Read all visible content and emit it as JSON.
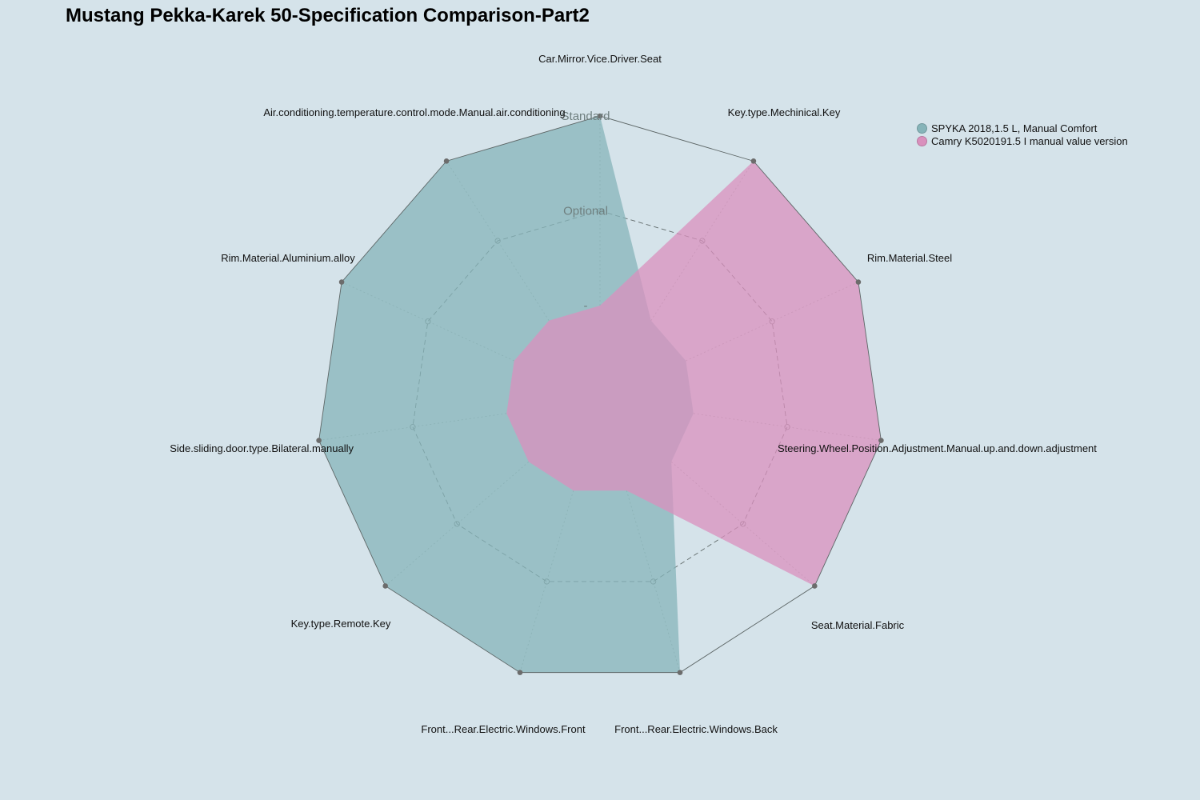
{
  "chart_data": {
    "type": "radar",
    "title": "Mustang Pekka-Karek 50-Specification Comparison-Part2",
    "axes": [
      "Car.Mirror.Vice.Driver.Seat",
      "Key.type.Mechinical.Key",
      "Rim.Material.Steel",
      "Steering.Wheel.Position.Adjustment.Manual.up.and.down.adjustment",
      "Seat.Material.Fabric",
      "Front...Rear.Electric.Windows.Back",
      "Front...Rear.Electric.Windows.Front",
      "Key.type.Remote.Key",
      "Side.sliding.door.type.Bilateral.manually",
      "Rim.Material.Aluminium.alloy",
      "Air.conditioning.temperature.control.mode.Manual.air.conditioning"
    ],
    "levels": [
      "-",
      "Optional",
      "Standard"
    ],
    "level_values": [
      0,
      1,
      2
    ],
    "range": [
      0,
      2
    ],
    "grid": true,
    "legend_position": "top-right",
    "series": [
      {
        "name": "SPYKA 2018,1.5 L, Manual Comfort",
        "color": "#86b4b9",
        "values": [
          2,
          0,
          0,
          0,
          0,
          2,
          2,
          2,
          2,
          2,
          2
        ]
      },
      {
        "name": "Camry K5020191.5 I manual value version",
        "color": "#d990bd",
        "values": [
          0,
          2,
          2,
          2,
          2,
          0,
          0,
          0,
          0,
          0,
          0
        ]
      }
    ]
  }
}
